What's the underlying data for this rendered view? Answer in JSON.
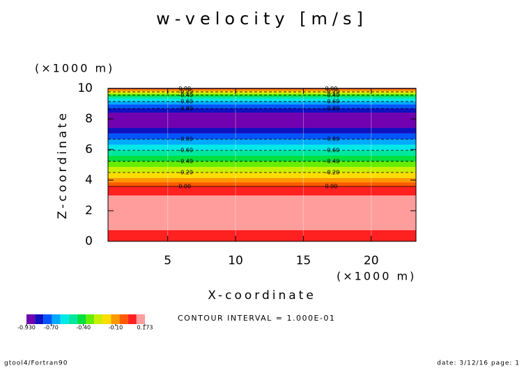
{
  "chart_data": {
    "type": "contour",
    "title": "w-velocity [m/s]",
    "x_label": "X-coordinate",
    "y_label": "Z-coordinate",
    "x_unit": "(×1000 m)",
    "y_unit": "(×1000 m)",
    "xlim": [
      0.6,
      23.3
    ],
    "ylim": [
      0,
      10
    ],
    "xticks": [
      5,
      10,
      15,
      20
    ],
    "yticks": [
      0,
      2,
      4,
      6,
      8,
      10
    ],
    "bands": [
      {
        "from": 0,
        "to": 0.73,
        "color": "#ff2020"
      },
      {
        "from": 0.73,
        "to": 3.0,
        "color": "#ff9c9c"
      },
      {
        "from": 3.0,
        "to": 3.59,
        "color": "#ff2020"
      },
      {
        "from": 3.59,
        "to": 3.86,
        "color": "#ff5a00"
      },
      {
        "from": 3.86,
        "to": 4.14,
        "color": "#ff9900"
      },
      {
        "from": 4.14,
        "to": 4.5,
        "color": "#ffdd00"
      },
      {
        "from": 4.5,
        "to": 4.86,
        "color": "#c8f000"
      },
      {
        "from": 4.86,
        "to": 5.23,
        "color": "#66ee00"
      },
      {
        "from": 5.23,
        "to": 5.59,
        "color": "#00e040"
      },
      {
        "from": 5.59,
        "to": 5.95,
        "color": "#00e8a0"
      },
      {
        "from": 5.95,
        "to": 6.32,
        "color": "#00e8e8"
      },
      {
        "from": 6.32,
        "to": 6.68,
        "color": "#00aaff"
      },
      {
        "from": 6.68,
        "to": 7.05,
        "color": "#0055ff"
      },
      {
        "from": 7.05,
        "to": 7.41,
        "color": "#1010c0"
      },
      {
        "from": 7.41,
        "to": 8.41,
        "color": "#7000b0"
      },
      {
        "from": 8.41,
        "to": 8.68,
        "color": "#1010c0"
      },
      {
        "from": 8.68,
        "to": 8.95,
        "color": "#0055ff"
      },
      {
        "from": 8.95,
        "to": 9.14,
        "color": "#00aaff"
      },
      {
        "from": 9.14,
        "to": 9.32,
        "color": "#00e8e8"
      },
      {
        "from": 9.32,
        "to": 9.45,
        "color": "#00e8a0"
      },
      {
        "from": 9.45,
        "to": 9.55,
        "color": "#00e040"
      },
      {
        "from": 9.55,
        "to": 9.64,
        "color": "#66ee00"
      },
      {
        "from": 9.64,
        "to": 9.73,
        "color": "#c8f000"
      },
      {
        "from": 9.73,
        "to": 9.82,
        "color": "#ffdd00"
      },
      {
        "from": 9.82,
        "to": 9.91,
        "color": "#ff9900"
      },
      {
        "from": 9.91,
        "to": 9.95,
        "color": "#ff5a00"
      },
      {
        "from": 9.95,
        "to": 10,
        "color": "#ff2020"
      }
    ],
    "contours": [
      {
        "level": {
          "value": 0,
          "label": "0.00"
        },
        "z": 9.98
      },
      {
        "level": {
          "value": -0.2,
          "label": "-0.20"
        },
        "z": 9.77
      },
      {
        "level": {
          "value": -0.4,
          "label": "-0.40"
        },
        "z": 9.55
      },
      {
        "level": {
          "value": -0.6,
          "label": "-0.60"
        },
        "z": 9.14
      },
      {
        "level": {
          "value": -0.8,
          "label": "-0.80"
        },
        "z": 8.68
      },
      {
        "level": {
          "value": -0.8,
          "label": "-0.80"
        },
        "z": 6.68
      },
      {
        "level": {
          "value": -0.6,
          "label": "-0.60"
        },
        "z": 5.95
      },
      {
        "level": {
          "value": -0.4,
          "label": "-0.40"
        },
        "z": 5.23
      },
      {
        "level": {
          "value": -0.2,
          "label": "-0.20"
        },
        "z": 4.5
      },
      {
        "level": {
          "value": 0,
          "label": "0.00"
        },
        "z": 3.59
      }
    ],
    "label_x": [
      5.8,
      16.6
    ],
    "colorbar": {
      "colors": [
        "#7000b0",
        "#1010c0",
        "#0055ff",
        "#00aaff",
        "#00e8e8",
        "#00e8a0",
        "#00e040",
        "#66ee00",
        "#c8f000",
        "#ffdd00",
        "#ff9900",
        "#ff5a00",
        "#ff2020",
        "#ff9c9c"
      ],
      "lim": [
        -0.93,
        0.173
      ],
      "ticks": [
        {
          "value": -0.93,
          "label": "-0.930"
        },
        {
          "value": -0.7,
          "label": "-0.70"
        },
        {
          "value": -0.4,
          "label": "-0.40"
        },
        {
          "value": -0.1,
          "label": "-0.10"
        },
        0.173
      ]
    },
    "annotation": "CONTOUR INTERVAL = 1.000E-01",
    "footer_left": "gtool4/Fortran90",
    "footer_right": "date: 3/12/16 page: 1"
  }
}
